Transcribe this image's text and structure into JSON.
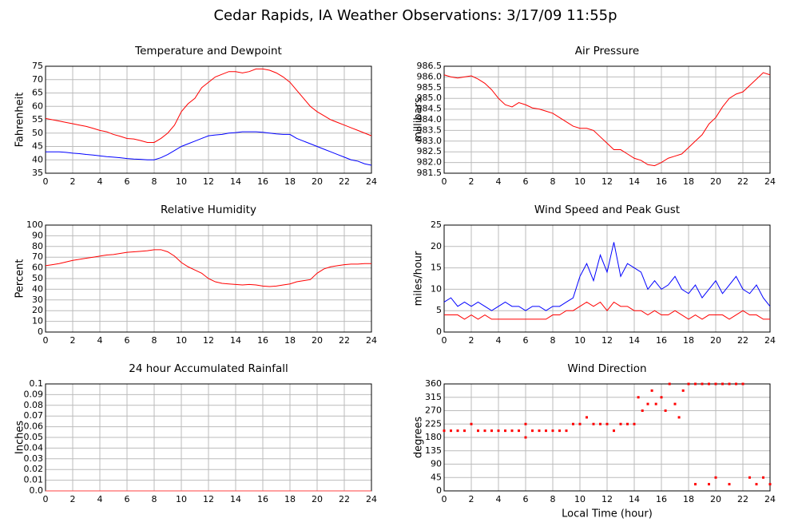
{
  "title": "Cedar Rapids, IA Weather Observations: 3/17/09 11:55p",
  "chart_data": [
    {
      "type": "line",
      "title": "Temperature and Dewpoint",
      "ylabel": "Fahrenheit",
      "x": [
        0,
        0.5,
        1,
        1.5,
        2,
        2.5,
        3,
        3.5,
        4,
        4.5,
        5,
        5.5,
        6,
        6.5,
        7,
        7.5,
        8,
        8.5,
        9,
        9.5,
        10,
        10.5,
        11,
        11.5,
        12,
        12.5,
        13,
        13.5,
        14,
        14.5,
        15,
        15.5,
        16,
        16.5,
        17,
        17.5,
        18,
        18.5,
        19,
        19.5,
        20,
        20.5,
        21,
        21.5,
        22,
        22.5,
        23,
        23.5,
        24
      ],
      "series": [
        {
          "color": "#ff0000",
          "values": [
            55.5,
            55,
            54.5,
            54,
            53.5,
            53,
            52.5,
            51.8,
            51,
            50.5,
            49.5,
            48.8,
            48,
            47.8,
            47.2,
            46.5,
            46.5,
            48,
            50,
            53,
            58,
            61,
            63,
            67,
            69,
            71,
            72,
            73,
            73,
            72.5,
            73,
            74,
            74,
            73.5,
            72.5,
            71,
            69,
            66,
            63,
            60,
            58,
            56.5,
            55,
            54,
            53,
            52,
            51,
            50,
            49
          ]
        },
        {
          "color": "#0000ff",
          "values": [
            43,
            43,
            43,
            42.8,
            42.5,
            42.3,
            42,
            41.8,
            41.5,
            41.2,
            41,
            40.8,
            40.5,
            40.3,
            40.2,
            40,
            40,
            40.8,
            42,
            43.5,
            45,
            46,
            47,
            48,
            49,
            49.3,
            49.5,
            50,
            50.2,
            50.5,
            50.5,
            50.5,
            50.3,
            50,
            49.7,
            49.5,
            49.5,
            48,
            47,
            46,
            45,
            44,
            43,
            42,
            41,
            40,
            39.5,
            38.5,
            38
          ]
        }
      ],
      "xlim": [
        0,
        24
      ],
      "xticks": [
        0,
        2,
        4,
        6,
        8,
        10,
        12,
        14,
        16,
        18,
        20,
        22,
        24
      ],
      "ylim": [
        35,
        75
      ],
      "yticks": [
        35,
        40,
        45,
        50,
        55,
        60,
        65,
        70,
        75
      ],
      "grid": true
    },
    {
      "type": "line",
      "title": "Air Pressure",
      "ylabel": "millibars",
      "x": [
        0,
        0.5,
        1,
        1.5,
        2,
        2.5,
        3,
        3.5,
        4,
        4.5,
        5,
        5.5,
        6,
        6.5,
        7,
        7.5,
        8,
        8.5,
        9,
        9.5,
        10,
        10.5,
        11,
        11.5,
        12,
        12.5,
        13,
        13.5,
        14,
        14.5,
        15,
        15.5,
        16,
        16.5,
        17,
        17.5,
        18,
        18.5,
        19,
        19.5,
        20,
        20.5,
        21,
        21.5,
        22,
        22.5,
        23,
        23.5,
        24
      ],
      "series": [
        {
          "color": "#ff0000",
          "values": [
            986.1,
            986,
            985.95,
            986,
            986.05,
            985.9,
            985.7,
            985.4,
            985,
            984.7,
            984.6,
            984.8,
            984.7,
            984.55,
            984.5,
            984.4,
            984.3,
            984.1,
            983.9,
            983.7,
            983.6,
            983.6,
            983.5,
            983.2,
            982.9,
            982.6,
            982.6,
            982.4,
            982.2,
            982.1,
            981.9,
            981.85,
            982,
            982.2,
            982.3,
            982.4,
            982.7,
            983,
            983.3,
            983.8,
            984.1,
            984.6,
            985,
            985.2,
            985.3,
            985.6,
            985.9,
            986.2,
            986.1
          ]
        }
      ],
      "xlim": [
        0,
        24
      ],
      "xticks": [
        0,
        2,
        4,
        6,
        8,
        10,
        12,
        14,
        16,
        18,
        20,
        22,
        24
      ],
      "ylim": [
        981.5,
        986.5
      ],
      "yticks": [
        981.5,
        {
          "value": 982,
          "label": "982.0"
        },
        982.5,
        {
          "value": 983,
          "label": "983.0"
        },
        983.5,
        {
          "value": 984,
          "label": "984.0"
        },
        984.5,
        {
          "value": 985,
          "label": "985.0"
        },
        985.5,
        {
          "value": 986,
          "label": "986.0"
        },
        986.5
      ],
      "grid": true
    },
    {
      "type": "line",
      "title": "Relative Humidity",
      "ylabel": "Percent",
      "x": [
        0,
        0.5,
        1,
        1.5,
        2,
        2.5,
        3,
        3.5,
        4,
        4.5,
        5,
        5.5,
        6,
        6.5,
        7,
        7.5,
        8,
        8.5,
        9,
        9.5,
        10,
        10.5,
        11,
        11.5,
        12,
        12.5,
        13,
        13.5,
        14,
        14.5,
        15,
        15.5,
        16,
        16.5,
        17,
        17.5,
        18,
        18.5,
        19,
        19.5,
        20,
        20.5,
        21,
        21.5,
        22,
        22.5,
        23,
        23.5,
        24
      ],
      "series": [
        {
          "color": "#ff0000",
          "values": [
            62,
            63,
            64,
            65.5,
            67,
            68,
            69,
            70,
            71,
            72,
            72.5,
            73.5,
            74.5,
            75,
            75.5,
            76,
            77,
            77,
            75,
            71,
            65,
            61,
            58,
            55,
            50,
            47,
            45.5,
            45,
            44.5,
            44,
            44.5,
            44,
            43,
            42.5,
            43,
            44,
            45,
            47,
            48,
            49,
            55,
            59,
            61,
            62,
            63,
            63.5,
            63.5,
            64,
            64
          ]
        }
      ],
      "xlim": [
        0,
        24
      ],
      "xticks": [
        0,
        2,
        4,
        6,
        8,
        10,
        12,
        14,
        16,
        18,
        20,
        22,
        24
      ],
      "ylim": [
        0,
        100
      ],
      "yticks": [
        0,
        10,
        20,
        30,
        40,
        50,
        60,
        70,
        80,
        90,
        100
      ],
      "grid": true
    },
    {
      "type": "line",
      "title": "Wind Speed and Peak Gust",
      "ylabel": "miles/hour",
      "x": [
        0,
        0.5,
        1,
        1.5,
        2,
        2.5,
        3,
        3.5,
        4,
        4.5,
        5,
        5.5,
        6,
        6.5,
        7,
        7.5,
        8,
        8.5,
        9,
        9.5,
        10,
        10.5,
        11,
        11.5,
        12,
        12.5,
        13,
        13.5,
        14,
        14.5,
        15,
        15.5,
        16,
        16.5,
        17,
        17.5,
        18,
        18.5,
        19,
        19.5,
        20,
        20.5,
        21,
        21.5,
        22,
        22.5,
        23,
        23.5,
        24
      ],
      "series": [
        {
          "color": "#0000ff",
          "values": [
            7,
            8,
            6,
            7,
            6,
            7,
            6,
            5,
            6,
            7,
            6,
            6,
            5,
            6,
            6,
            5,
            6,
            6,
            7,
            8,
            13,
            16,
            12,
            18,
            14,
            21,
            13,
            16,
            15,
            14,
            10,
            12,
            10,
            11,
            13,
            10,
            9,
            11,
            8,
            10,
            12,
            9,
            11,
            13,
            10,
            9,
            11,
            8,
            6
          ]
        },
        {
          "color": "#ff0000",
          "values": [
            4,
            4,
            4,
            3,
            4,
            3,
            4,
            3,
            3,
            3,
            3,
            3,
            3,
            3,
            3,
            3,
            4,
            4,
            5,
            5,
            6,
            7,
            6,
            7,
            5,
            7,
            6,
            6,
            5,
            5,
            4,
            5,
            4,
            4,
            5,
            4,
            3,
            4,
            3,
            4,
            4,
            4,
            3,
            4,
            5,
            4,
            4,
            3,
            3
          ]
        }
      ],
      "xlim": [
        0,
        24
      ],
      "xticks": [
        0,
        2,
        4,
        6,
        8,
        10,
        12,
        14,
        16,
        18,
        20,
        22,
        24
      ],
      "ylim": [
        0,
        25
      ],
      "yticks": [
        0,
        5,
        10,
        15,
        20,
        25
      ],
      "grid": true
    },
    {
      "type": "line",
      "title": "24 hour Accumulated Rainfall",
      "ylabel": "Inches",
      "x": [
        0,
        24
      ],
      "series": [
        {
          "color": "#ff4040",
          "values": [
            0,
            0
          ]
        }
      ],
      "xlim": [
        0,
        24
      ],
      "xticks": [
        0,
        2,
        4,
        6,
        8,
        10,
        12,
        14,
        16,
        18,
        20,
        22,
        24
      ],
      "ylim": [
        0,
        0.1
      ],
      "yticks": [
        {
          "value": 0,
          "label": "0.0"
        },
        0.01,
        0.02,
        0.03,
        0.04,
        0.05,
        0.06,
        0.07,
        0.08,
        0.09,
        0.1
      ],
      "grid": true
    },
    {
      "type": "scatter",
      "title": "Wind Direction",
      "ylabel": "degrees",
      "xlabel": "Local Time (hour)",
      "x": [
        0,
        0.5,
        1,
        1.5,
        2,
        2.5,
        3,
        3.5,
        4,
        4.5,
        5,
        5.5,
        6,
        6,
        6.5,
        7,
        7.5,
        8,
        8.5,
        9,
        9.5,
        10,
        10.5,
        11,
        11.5,
        12,
        12.5,
        13,
        13.5,
        14,
        14.3,
        14.6,
        15,
        15.3,
        15.6,
        16,
        16.3,
        16.6,
        17,
        17.3,
        17.6,
        18,
        18.5,
        19,
        19.5,
        20,
        20.5,
        21,
        21.5,
        22,
        18.5,
        19.5,
        20,
        21,
        22.5,
        23,
        23.5,
        24
      ],
      "series": [
        {
          "color": "#ff0000",
          "values": [
            202.5,
            202.5,
            202.5,
            202.5,
            225,
            202.5,
            202.5,
            202.5,
            202.5,
            202.5,
            202.5,
            202.5,
            225,
            180,
            202.5,
            202.5,
            202.5,
            202.5,
            202.5,
            202.5,
            225,
            225,
            247.5,
            225,
            225,
            225,
            202.5,
            225,
            225,
            225,
            315,
            270,
            292.5,
            337.5,
            292.5,
            315,
            270,
            360,
            292.5,
            247.5,
            337.5,
            360,
            360,
            360,
            360,
            360,
            360,
            360,
            360,
            360,
            22.5,
            22.5,
            45,
            22.5,
            45,
            22.5,
            45,
            22.5
          ]
        }
      ],
      "xlim": [
        0,
        24
      ],
      "xticks": [
        0,
        2,
        4,
        6,
        8,
        10,
        12,
        14,
        16,
        18,
        20,
        22,
        24
      ],
      "ylim": [
        0,
        360
      ],
      "yticks": [
        0,
        45,
        90,
        135,
        180,
        225,
        270,
        315,
        360
      ],
      "grid": true
    }
  ]
}
